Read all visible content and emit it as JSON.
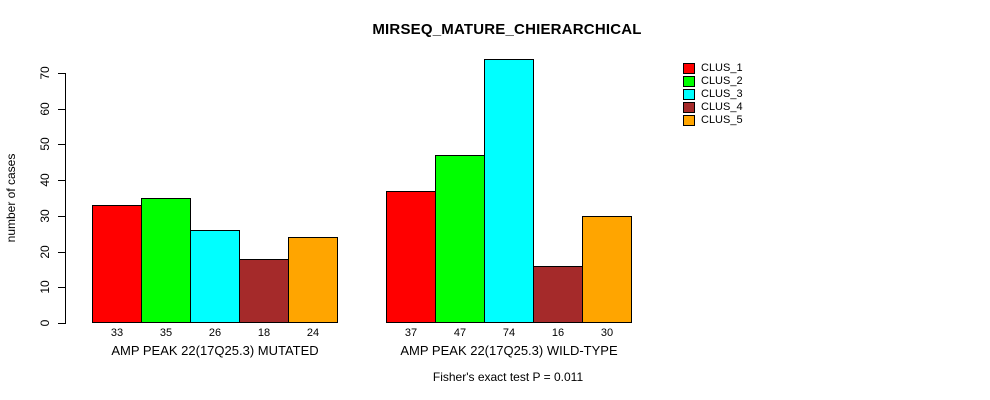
{
  "chart_data": {
    "type": "bar",
    "title": "MIRSEQ_MATURE_CHIERARCHICAL",
    "ylabel": "number of cases",
    "xlabel": "",
    "footnote": "Fisher's exact test P = 0.011",
    "ylim": [
      0,
      74
    ],
    "yticks": [
      0,
      10,
      20,
      30,
      40,
      50,
      60,
      70
    ],
    "grid": false,
    "bar_value_labels_shown": true,
    "legend_position": "top-right",
    "categories": [
      "AMP PEAK 22(17Q25.3) MUTATED",
      "AMP PEAK 22(17Q25.3) WILD-TYPE"
    ],
    "series": [
      {
        "name": "CLUS_1",
        "color": "#FF0000",
        "values": [
          33,
          37
        ]
      },
      {
        "name": "CLUS_2",
        "color": "#00FF00",
        "values": [
          35,
          47
        ]
      },
      {
        "name": "CLUS_3",
        "color": "#00FFFF",
        "values": [
          26,
          74
        ]
      },
      {
        "name": "CLUS_4",
        "color": "#A52A2A",
        "values": [
          18,
          16
        ]
      },
      {
        "name": "CLUS_5",
        "color": "#FFA500",
        "values": [
          24,
          30
        ]
      }
    ]
  }
}
